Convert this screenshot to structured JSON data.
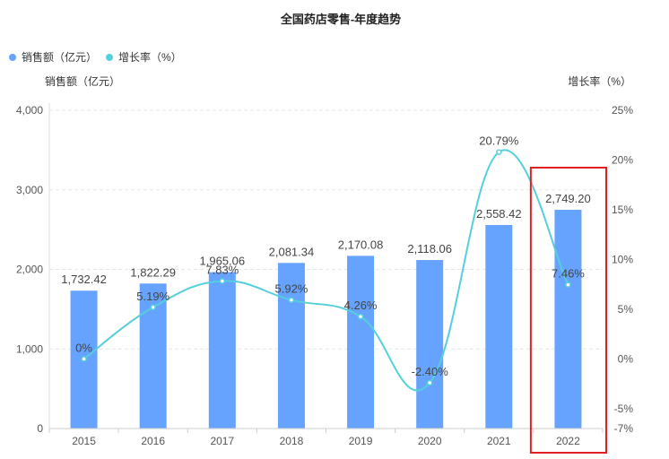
{
  "chart_data": {
    "type": "bar",
    "title": "全国药店零售-年度趋势",
    "legend": [
      {
        "name": "销售额（亿元）",
        "color": "#66a3ff"
      },
      {
        "name": "增长率（%）",
        "color": "#56cfdd"
      }
    ],
    "left_axis_name": "销售额（亿元）",
    "right_axis_name": "增长率（%）",
    "categories": [
      "2015",
      "2016",
      "2017",
      "2018",
      "2019",
      "2020",
      "2021",
      "2022"
    ],
    "series": [
      {
        "name": "销售额（亿元）",
        "type": "bar",
        "color": "#66a3ff",
        "values": [
          1732.42,
          1822.29,
          1965.06,
          2081.34,
          2170.08,
          2118.06,
          2558.42,
          2749.2
        ],
        "labels": [
          "1,732.42",
          "1,822.29",
          "1,965.06",
          "2,081.34",
          "2,170.08",
          "2,118.06",
          "2,558.42",
          "2,749.20"
        ]
      },
      {
        "name": "增长率（%）",
        "type": "line",
        "color": "#56cfdd",
        "values": [
          0,
          5.19,
          7.83,
          5.92,
          4.26,
          -2.4,
          20.79,
          7.46
        ],
        "labels": [
          "0%",
          "5.19%",
          "7.83%",
          "5.92%",
          "4.26%",
          "-2.40%",
          "20.79%",
          "7.46%"
        ]
      }
    ],
    "y_left": {
      "min": 0,
      "max": 4000,
      "ticks": [
        0,
        1000,
        2000,
        3000,
        4000
      ],
      "tick_labels": [
        "0",
        "1,000",
        "2,000",
        "3,000",
        "4,000"
      ]
    },
    "y_right": {
      "min": -7,
      "max": 25,
      "ticks": [
        -7,
        -5,
        0,
        5,
        10,
        15,
        20,
        25
      ],
      "tick_labels": [
        "-7%",
        "-5%",
        "0%",
        "5%",
        "10%",
        "15%",
        "20%",
        "25%"
      ]
    },
    "grid": true,
    "highlight": {
      "category": "2022",
      "color": "#e02020"
    }
  }
}
